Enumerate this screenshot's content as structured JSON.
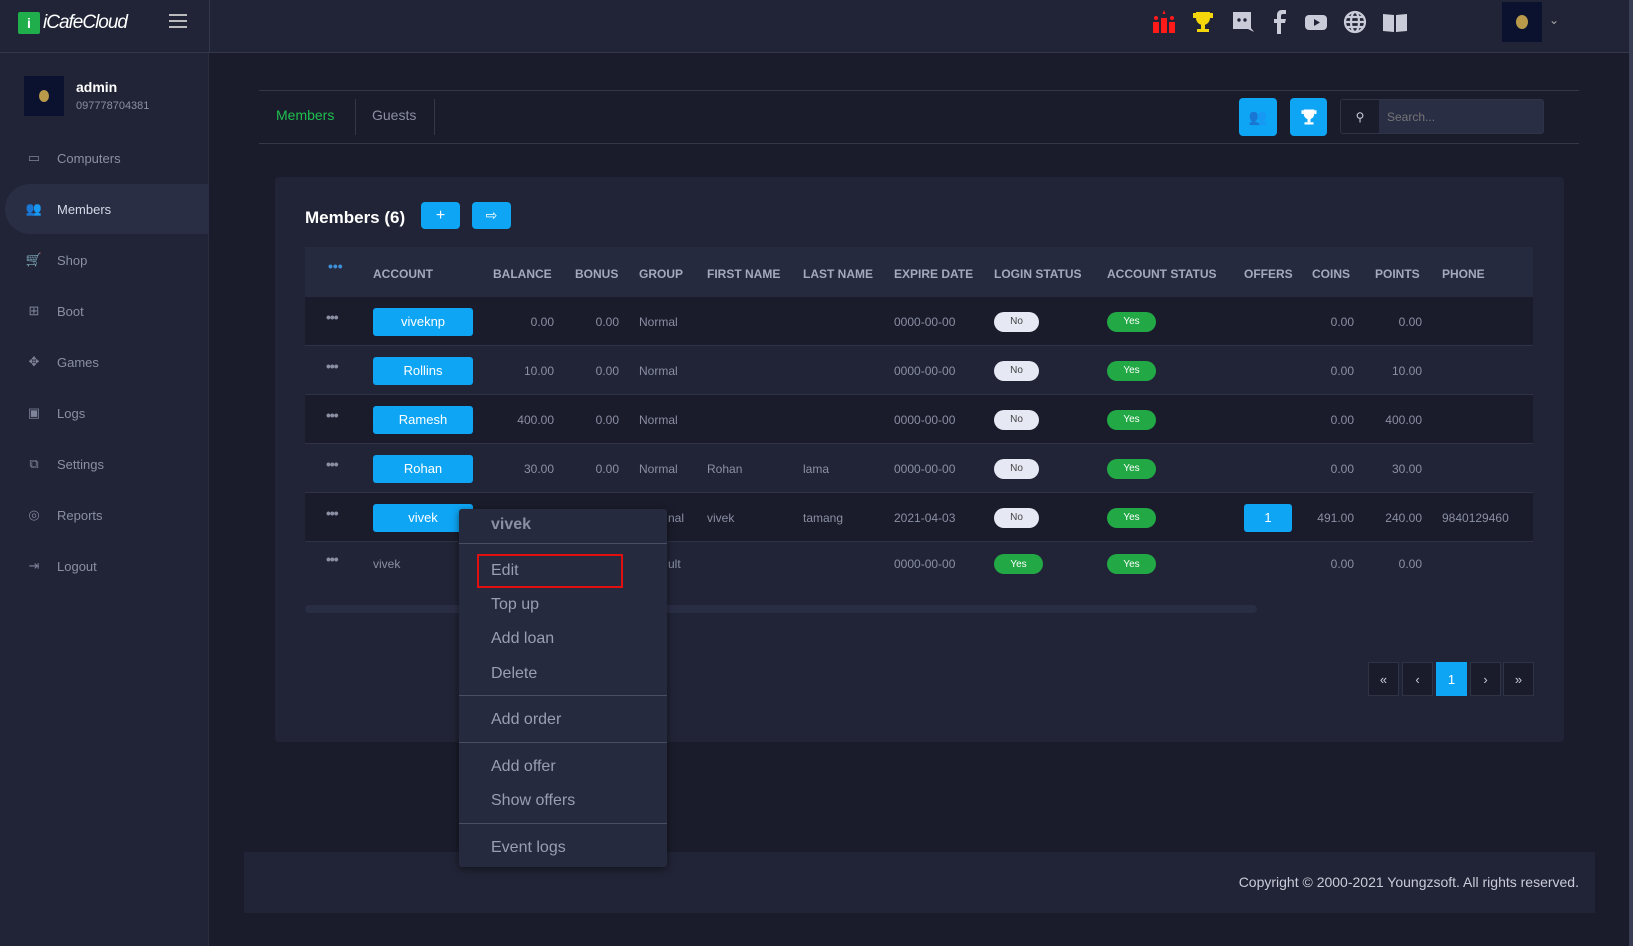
{
  "brand": {
    "name": "iCafeCloud"
  },
  "header": {
    "icons": [
      "ranking-icon",
      "trophy-icon",
      "discord-icon",
      "facebook-icon",
      "youtube-icon",
      "globe-icon",
      "book-icon"
    ],
    "accent_red": "#ff1a1a",
    "accent_gold": "#f5d60a"
  },
  "user": {
    "name": "admin",
    "phone": "097778704381"
  },
  "sidebar": {
    "items": [
      {
        "label": "Computers",
        "icon": "monitor-icon"
      },
      {
        "label": "Members",
        "icon": "users-icon",
        "active": true
      },
      {
        "label": "Shop",
        "icon": "cart-icon"
      },
      {
        "label": "Boot",
        "icon": "windows-icon"
      },
      {
        "label": "Games",
        "icon": "gamepad-icon"
      },
      {
        "label": "Logs",
        "icon": "calendar-icon"
      },
      {
        "label": "Settings",
        "icon": "settings-icon"
      },
      {
        "label": "Reports",
        "icon": "award-icon"
      },
      {
        "label": "Logout",
        "icon": "logout-icon"
      }
    ]
  },
  "tabs": [
    {
      "label": "Members",
      "active": true
    },
    {
      "label": "Guests"
    }
  ],
  "search": {
    "placeholder": "Search..."
  },
  "members": {
    "title": "Members (6)",
    "add_label": "+",
    "columns": [
      "ACCOUNT",
      "BALANCE",
      "BONUS",
      "GROUP",
      "FIRST NAME",
      "LAST NAME",
      "EXPIRE DATE",
      "LOGIN STATUS",
      "ACCOUNT STATUS",
      "OFFERS",
      "COINS",
      "POINTS",
      "PHONE"
    ],
    "rows": [
      {
        "account": "viveknp",
        "balance": "0.00",
        "bonus": "0.00",
        "group": "Normal",
        "first": "",
        "last": "",
        "expire": "0000-00-00",
        "login": "No",
        "status": "Yes",
        "offers": "",
        "coins": "0.00",
        "points": "0.00",
        "phone": ""
      },
      {
        "account": "Rollins",
        "balance": "10.00",
        "bonus": "0.00",
        "group": "Normal",
        "first": "",
        "last": "",
        "expire": "0000-00-00",
        "login": "No",
        "status": "Yes",
        "offers": "",
        "coins": "0.00",
        "points": "10.00",
        "phone": ""
      },
      {
        "account": "Ramesh",
        "balance": "400.00",
        "bonus": "0.00",
        "group": "Normal",
        "first": "",
        "last": "",
        "expire": "0000-00-00",
        "login": "No",
        "status": "Yes",
        "offers": "",
        "coins": "0.00",
        "points": "400.00",
        "phone": ""
      },
      {
        "account": "Rohan",
        "balance": "30.00",
        "bonus": "0.00",
        "group": "Normal",
        "first": "Rohan",
        "last": "lama",
        "expire": "0000-00-00",
        "login": "No",
        "status": "Yes",
        "offers": "",
        "coins": "0.00",
        "points": "30.00",
        "phone": ""
      },
      {
        "account": "vivek",
        "balance": "",
        "bonus": "",
        "group": "nal",
        "first": "vivek",
        "last": "tamang",
        "expire": "2021-04-03",
        "login": "No",
        "status": "Yes",
        "offers": "1",
        "coins": "491.00",
        "points": "240.00",
        "phone": "9840129460"
      },
      {
        "account": "vivek",
        "balance": "",
        "bonus": "",
        "group": "ult",
        "first": "",
        "last": "",
        "expire": "0000-00-00",
        "login": "Yes",
        "status": "Yes",
        "offers": "",
        "coins": "0.00",
        "points": "0.00",
        "phone": ""
      }
    ]
  },
  "pagination": {
    "first": "«",
    "prev": "‹",
    "current": "1",
    "next": "›",
    "last": "»"
  },
  "context_menu": {
    "title": "vivek",
    "items": [
      "Edit",
      "Top up",
      "Add loan",
      "Delete",
      "Add order",
      "Add offer",
      "Show offers",
      "Event logs"
    ],
    "highlighted": "Edit"
  },
  "footer": {
    "copyright": "Copyright © 2000-2021 Youngzsoft. All rights reserved."
  }
}
